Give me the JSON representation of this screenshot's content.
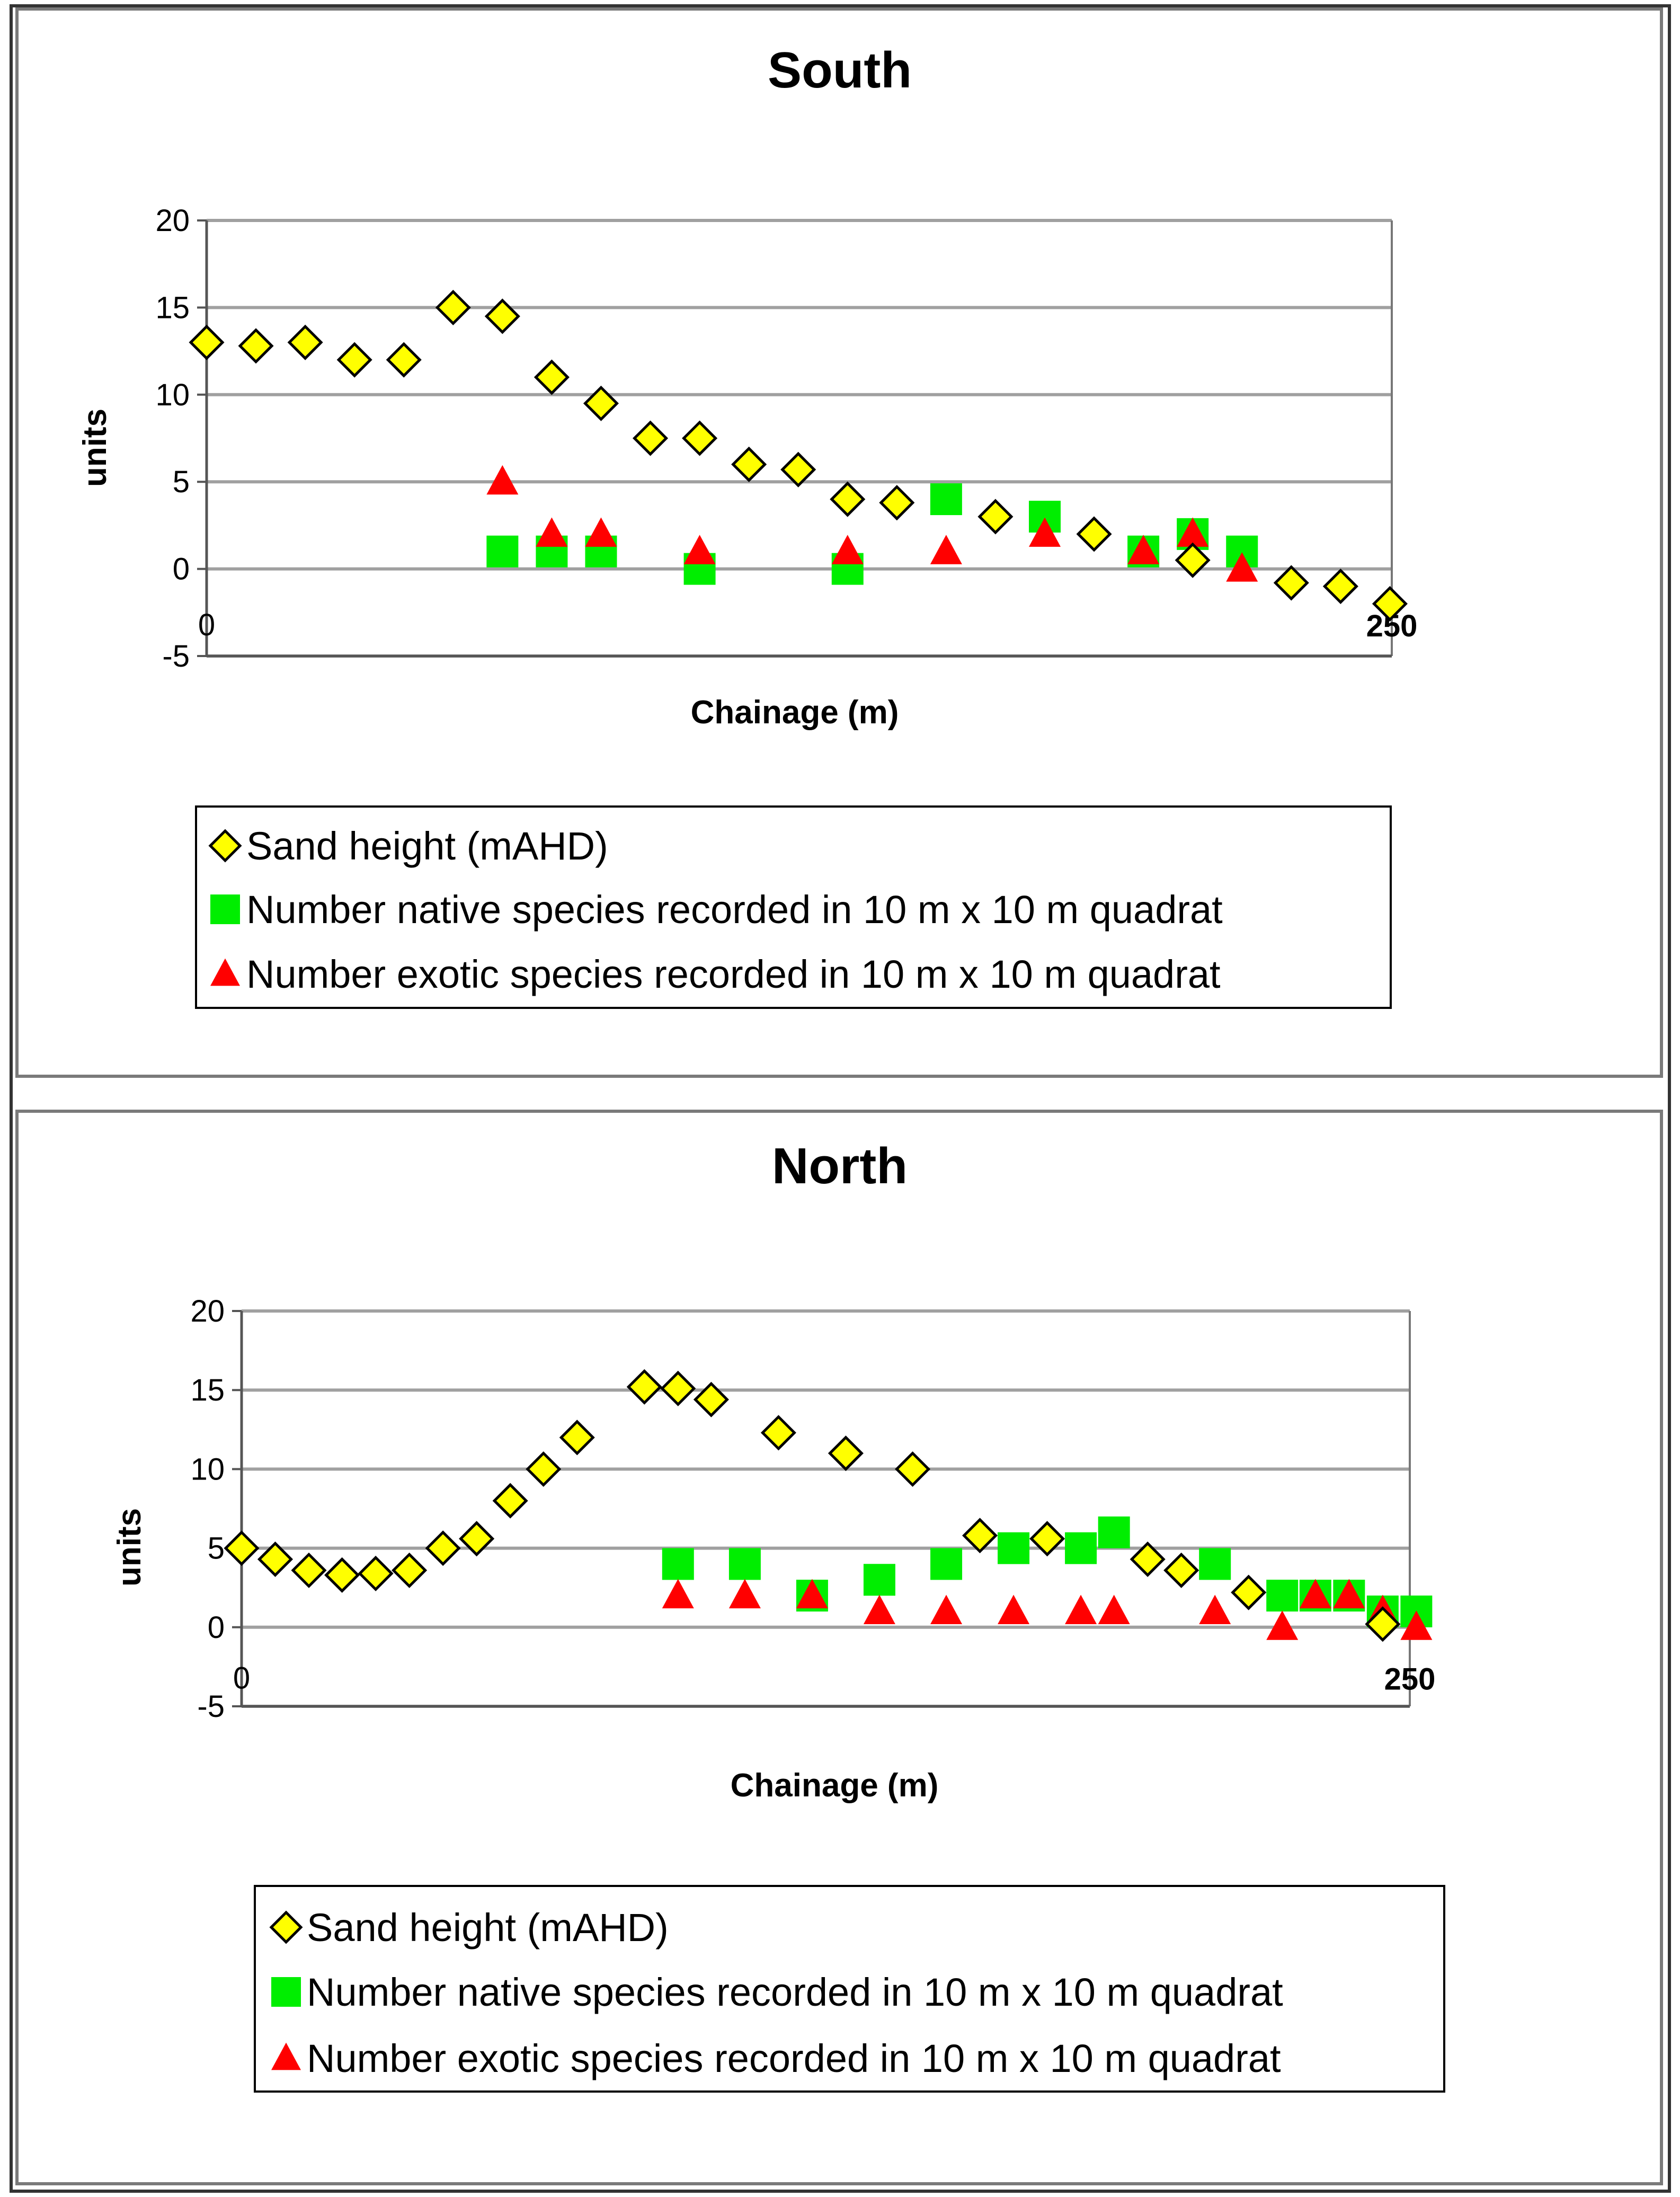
{
  "chart_data": [
    {
      "type": "scatter",
      "title": "South",
      "xlabel": "Chainage (m)",
      "ylabel": "units",
      "xlim": [
        0,
        250
      ],
      "ylim": [
        -5,
        20
      ],
      "yticks": [
        20,
        15,
        10,
        5,
        0,
        -5
      ],
      "x_tick_labels": [
        "0",
        "250"
      ],
      "grid": true,
      "legend_position": "bottom",
      "series": [
        {
          "name": "Sand height (mAHD)",
          "marker": "diamond",
          "color": "#ffff00",
          "points": [
            [
              0,
              13
            ],
            [
              10.4,
              12.8
            ],
            [
              20.8,
              13
            ],
            [
              31.2,
              12
            ],
            [
              41.6,
              12
            ],
            [
              52,
              15
            ],
            [
              62.4,
              14.5
            ],
            [
              72.8,
              11
            ],
            [
              83.2,
              9.5
            ],
            [
              93.6,
              7.5
            ],
            [
              104,
              7.5
            ],
            [
              114.4,
              6
            ],
            [
              124.8,
              5.7
            ],
            [
              135.2,
              4
            ],
            [
              145.6,
              3.8
            ],
            [
              166.4,
              3
            ],
            [
              187.2,
              2
            ],
            [
              208,
              0.5
            ],
            [
              228.8,
              -0.8
            ],
            [
              239.2,
              -1
            ],
            [
              249.6,
              -2
            ]
          ]
        },
        {
          "name": "Number native species recorded in 10 m x 10 m quadrat",
          "marker": "square",
          "color": "#00ee00",
          "points": [
            [
              62.4,
              1
            ],
            [
              72.8,
              1
            ],
            [
              83.2,
              1
            ],
            [
              104,
              0
            ],
            [
              135.2,
              0
            ],
            [
              156,
              4
            ],
            [
              176.8,
              3
            ],
            [
              197.6,
              1
            ],
            [
              208,
              2
            ],
            [
              218.4,
              1
            ]
          ]
        },
        {
          "name": "Number exotic species recorded in 10 m x 10 m quadrat",
          "marker": "triangle",
          "color": "#ff0000",
          "points": [
            [
              62.4,
              5
            ],
            [
              72.8,
              2
            ],
            [
              83.2,
              2
            ],
            [
              104,
              1
            ],
            [
              135.2,
              1
            ],
            [
              156,
              1
            ],
            [
              176.8,
              2
            ],
            [
              197.6,
              1
            ],
            [
              208,
              2
            ],
            [
              218.4,
              0
            ]
          ]
        }
      ]
    },
    {
      "type": "scatter",
      "title": "North",
      "xlabel": "Chainage (m)",
      "ylabel": "units",
      "xlim": [
        0,
        250
      ],
      "ylim": [
        -5,
        20
      ],
      "yticks": [
        20,
        15,
        10,
        5,
        0,
        -5
      ],
      "x_tick_labels": [
        "0",
        "250"
      ],
      "grid": true,
      "legend_position": "bottom",
      "series": [
        {
          "name": "Sand height (mAHD)",
          "marker": "diamond",
          "color": "#ffff00",
          "points": [
            [
              0,
              5
            ],
            [
              7.2,
              4.3
            ],
            [
              14.4,
              3.6
            ],
            [
              21.5,
              3.3
            ],
            [
              28.7,
              3.4
            ],
            [
              35.9,
              3.6
            ],
            [
              43.1,
              5
            ],
            [
              50.3,
              5.6
            ],
            [
              57.5,
              8
            ],
            [
              64.6,
              10
            ],
            [
              71.8,
              12
            ],
            [
              86.2,
              15.2
            ],
            [
              93.4,
              15.1
            ],
            [
              100.5,
              14.4
            ],
            [
              114.9,
              12.3
            ],
            [
              129.3,
              11
            ],
            [
              143.6,
              10
            ],
            [
              158,
              5.8
            ],
            [
              172.4,
              5.6
            ],
            [
              193.9,
              4.3
            ],
            [
              201.1,
              3.6
            ],
            [
              215.5,
              2.2
            ],
            [
              244.2,
              0.2
            ]
          ]
        },
        {
          "name": "Number native species recorded in 10 m x 10 m quadrat",
          "marker": "square",
          "color": "#00ee00",
          "points": [
            [
              93.4,
              4
            ],
            [
              107.7,
              4
            ],
            [
              122.1,
              2
            ],
            [
              136.5,
              3
            ],
            [
              150.8,
              4
            ],
            [
              165.2,
              5
            ],
            [
              179.6,
              5
            ],
            [
              186.7,
              6
            ],
            [
              208.3,
              4
            ],
            [
              222.7,
              2
            ],
            [
              229.8,
              2
            ],
            [
              237,
              2
            ],
            [
              244.2,
              1
            ],
            [
              251.4,
              1
            ]
          ]
        },
        {
          "name": "Number exotic species recorded in 10 m x 10 m quadrat",
          "marker": "triangle",
          "color": "#ff0000",
          "points": [
            [
              93.4,
              2
            ],
            [
              107.7,
              2
            ],
            [
              122.1,
              2
            ],
            [
              136.5,
              1
            ],
            [
              150.8,
              1
            ],
            [
              165.2,
              1
            ],
            [
              179.6,
              1
            ],
            [
              186.7,
              1
            ],
            [
              208.3,
              1
            ],
            [
              222.7,
              0
            ],
            [
              229.8,
              2
            ],
            [
              237,
              2
            ],
            [
              244.2,
              1
            ],
            [
              251.4,
              0
            ]
          ]
        }
      ]
    }
  ]
}
